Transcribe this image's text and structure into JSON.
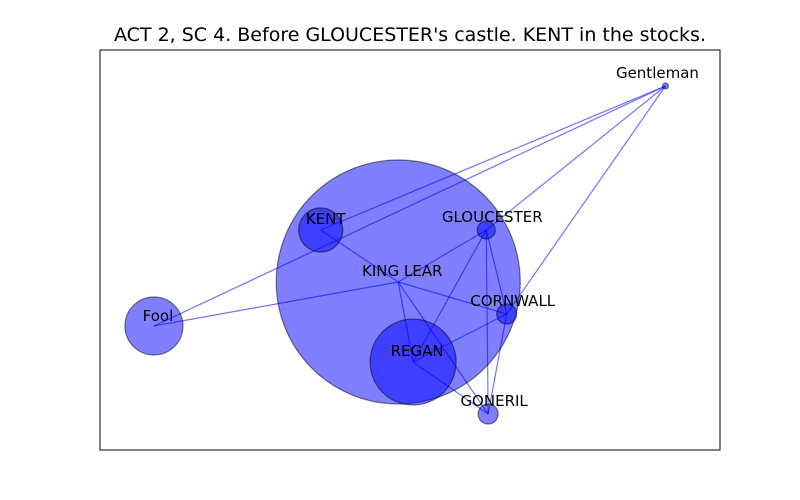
{
  "title": "ACT 2, SC 4. Before GLOUCESTER's castle. KENT in the stocks.",
  "colors": {
    "node_fill": "#0000ff",
    "edge": "#0000ff",
    "node_edge": "#000000",
    "frame": "#000000"
  },
  "chart_data": {
    "type": "network",
    "nodes": [
      {
        "name": "KING LEAR",
        "size_rank": 1,
        "x": 0.481,
        "y": 0.42
      },
      {
        "name": "REGAN",
        "size_rank": 2,
        "x": 0.505,
        "y": 0.22
      },
      {
        "name": "Fool",
        "size_rank": 3,
        "x": 0.087,
        "y": 0.31
      },
      {
        "name": "KENT",
        "size_rank": 4,
        "x": 0.356,
        "y": 0.55
      },
      {
        "name": "GONERIL",
        "size_rank": 5,
        "x": 0.626,
        "y": 0.09
      },
      {
        "name": "CORNWALL",
        "size_rank": 6,
        "x": 0.656,
        "y": 0.34
      },
      {
        "name": "GLOUCESTER",
        "size_rank": 7,
        "x": 0.623,
        "y": 0.55
      },
      {
        "name": "Gentleman",
        "size_rank": 8,
        "x": 0.912,
        "y": 0.91
      }
    ],
    "edges": [
      [
        "KING LEAR",
        "KENT"
      ],
      [
        "KING LEAR",
        "Fool"
      ],
      [
        "KING LEAR",
        "REGAN"
      ],
      [
        "KING LEAR",
        "GLOUCESTER"
      ],
      [
        "KING LEAR",
        "CORNWALL"
      ],
      [
        "KING LEAR",
        "GONERIL"
      ],
      [
        "KENT",
        "Gentleman"
      ],
      [
        "Fool",
        "Gentleman"
      ],
      [
        "Gentleman",
        "GLOUCESTER"
      ],
      [
        "Gentleman",
        "CORNWALL"
      ],
      [
        "REGAN",
        "GLOUCESTER"
      ],
      [
        "REGAN",
        "CORNWALL"
      ],
      [
        "REGAN",
        "GONERIL"
      ],
      [
        "GLOUCESTER",
        "CORNWALL"
      ],
      [
        "GLOUCESTER",
        "GONERIL"
      ],
      [
        "CORNWALL",
        "GONERIL"
      ]
    ]
  }
}
